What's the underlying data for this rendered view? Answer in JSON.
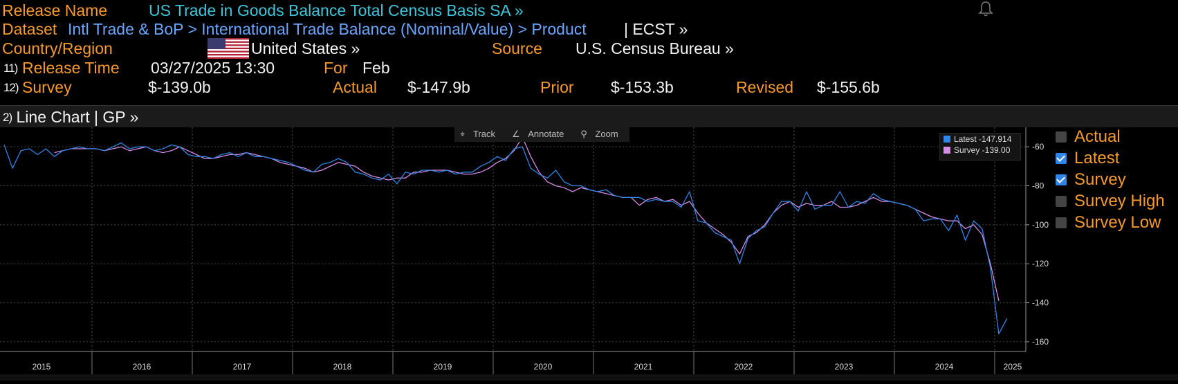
{
  "header": {
    "release_name_label": "Release Name",
    "release_name": "US Trade in Goods Balance Total Census Basis SA »",
    "dataset_label": "Dataset",
    "dataset_path": "Intl Trade & BoP > International Trade Balance (Nominal/Value) > Product",
    "dataset_ticker": "| ECST »",
    "country_label": "Country/Region",
    "country": "United States »",
    "source_label": "Source",
    "source": "U.S. Census Bureau »",
    "release_time_num": "11)",
    "release_time_label": "Release Time",
    "release_time": "03/27/2025 13:30",
    "for_label": "For",
    "for_value": "Feb",
    "survey_num": "12)",
    "survey_label": "Survey",
    "survey_value": "$-139.0b",
    "actual_label": "Actual",
    "actual_value": "$-147.9b",
    "prior_label": "Prior",
    "prior_value": "$-153.3b",
    "revised_label": "Revised",
    "revised_value": "$-155.6b"
  },
  "section": {
    "num": "2)",
    "title": "Line Chart | GP »"
  },
  "toolbar": {
    "track": "Track",
    "annotate": "Annotate",
    "zoom": "Zoom"
  },
  "legend": {
    "latest": "Latest -147.914",
    "survey": "Survey -139.00"
  },
  "side_legend": [
    {
      "label": "Actual",
      "checked": false
    },
    {
      "label": "Latest",
      "checked": true
    },
    {
      "label": "Survey",
      "checked": true
    },
    {
      "label": "Survey High",
      "checked": false
    },
    {
      "label": "Survey Low",
      "checked": false
    }
  ],
  "colors": {
    "latest": "#2f86e8",
    "survey": "#d68ce8",
    "label_orange": "#f59a2e"
  },
  "chart_data": {
    "type": "line",
    "x_start": "2015-01",
    "x_end": "2025-02",
    "ylim": [
      -165,
      -50
    ],
    "yticks": [
      -60,
      -80,
      -100,
      -120,
      -140,
      -160
    ],
    "years": [
      "2015",
      "2016",
      "2017",
      "2018",
      "2019",
      "2020",
      "2021",
      "2022",
      "2023",
      "2024",
      "2025"
    ],
    "series": [
      {
        "name": "Latest",
        "values": [
          -59,
          -71,
          -62,
          -61,
          -64,
          -61,
          -65,
          -62,
          -61,
          -60,
          -61,
          -61,
          -62,
          -60,
          -58,
          -61,
          -60,
          -60,
          -62,
          -61,
          -59,
          -60,
          -64,
          -65,
          -65,
          -66,
          -64,
          -63,
          -65,
          -63,
          -65,
          -65,
          -66,
          -67,
          -68,
          -70,
          -72,
          -73,
          -69,
          -68,
          -66,
          -68,
          -73,
          -74,
          -76,
          -77,
          -74,
          -79,
          -73,
          -74,
          -72,
          -72,
          -73,
          -72,
          -74,
          -73,
          -73,
          -70,
          -68,
          -65,
          -67,
          -61,
          -60,
          -71,
          -74,
          -76,
          -72,
          -78,
          -80,
          -80,
          -82,
          -83,
          -82,
          -85,
          -86,
          -86,
          -86,
          -88,
          -87,
          -88,
          -88,
          -91,
          -83,
          -98,
          -99,
          -104,
          -106,
          -108,
          -120,
          -107,
          -103,
          -101,
          -94,
          -88,
          -88,
          -93,
          -83,
          -92,
          -90,
          -90,
          -83,
          -91,
          -88,
          -89,
          -84,
          -87,
          -88,
          -89,
          -90,
          -92,
          -98,
          -97,
          -97,
          -103,
          -95,
          -108,
          -98,
          -102,
          -122,
          -156,
          -148
        ],
        "color": "#2f86e8"
      },
      {
        "name": "Survey",
        "values": [
          null,
          null,
          null,
          null,
          null,
          null,
          -63,
          -62,
          -61,
          -61,
          -61,
          -61,
          -62,
          -61,
          -60,
          -62,
          -61,
          -60,
          -62,
          -63,
          -62,
          -60,
          -62,
          -64,
          -66,
          -66,
          -65,
          -64,
          -64,
          -63,
          -64,
          -65,
          -66,
          -68,
          -69,
          -70,
          -71,
          -73,
          -72,
          -70,
          -68,
          -69,
          -70,
          -73,
          -75,
          -76,
          -77,
          -76,
          -76,
          -73,
          -73,
          -72,
          -72,
          -72,
          -73,
          -74,
          -74,
          -73,
          -71,
          -68,
          -66,
          -62,
          -55,
          -65,
          -73,
          -78,
          -80,
          -81,
          -83,
          -81,
          -82,
          -83,
          -84,
          -85,
          -86,
          -86,
          -90,
          -87,
          -86,
          -88,
          -87,
          -90,
          -88,
          -94,
          -99,
          -102,
          -105,
          -109,
          -115,
          -106,
          -104,
          -100,
          -94,
          -90,
          -88,
          -91,
          -89,
          -90,
          -90,
          -88,
          -91,
          -91,
          -90,
          -88,
          -86,
          -88,
          -88,
          -89,
          -90,
          -92,
          -94,
          -96,
          -97,
          -98,
          -98,
          -102,
          -100,
          -105,
          -120,
          -139
        ],
        "color": "#d68ce8"
      }
    ]
  }
}
